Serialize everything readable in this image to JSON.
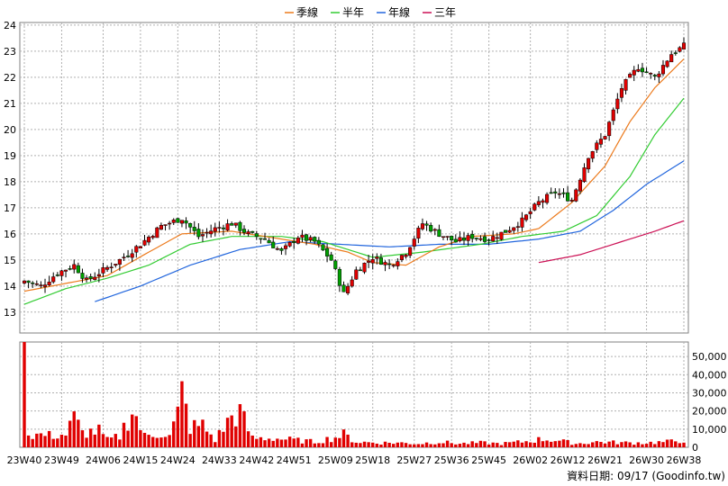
{
  "chart_data": {
    "type": "candlestick",
    "legend": [
      {
        "label": "季線",
        "color": "#ec7a1c"
      },
      {
        "label": "半年",
        "color": "#33cc33"
      },
      {
        "label": "年線",
        "color": "#2266dd"
      },
      {
        "label": "三年",
        "color": "#cc1155"
      }
    ],
    "price_axis": {
      "ticks": [
        13,
        14,
        15,
        16,
        17,
        18,
        19,
        20,
        21,
        22,
        23,
        24
      ],
      "ylim": [
        12.2,
        24.1
      ]
    },
    "volume_axis": {
      "ticks": [
        0,
        10000,
        20000,
        30000,
        40000,
        50000
      ],
      "tick_labels": [
        "0",
        "10,000",
        "20,000",
        "30,000",
        "40,000",
        "50,000"
      ],
      "ylim": [
        0,
        58000
      ]
    },
    "x_labels": [
      "23W40",
      "23W49",
      "24W06",
      "24W15",
      "24W24",
      "24W33",
      "24W42",
      "24W51",
      "25W09",
      "25W18",
      "25W27",
      "25W36",
      "25W45",
      "26W02",
      "26W12",
      "26W21",
      "26W30",
      "26W38"
    ],
    "close_anchors": [
      [
        0,
        14.2
      ],
      [
        4,
        14.0
      ],
      [
        8,
        14.5
      ],
      [
        12,
        14.8
      ],
      [
        15,
        14.2
      ],
      [
        19,
        14.6
      ],
      [
        23,
        15.0
      ],
      [
        28,
        15.6
      ],
      [
        33,
        16.3
      ],
      [
        38,
        16.6
      ],
      [
        42,
        15.9
      ],
      [
        46,
        16.2
      ],
      [
        50,
        16.4
      ],
      [
        54,
        16.0
      ],
      [
        58,
        15.8
      ],
      [
        62,
        15.3
      ],
      [
        66,
        15.9
      ],
      [
        70,
        15.7
      ],
      [
        74,
        15.0
      ],
      [
        77,
        13.7
      ],
      [
        80,
        14.6
      ],
      [
        84,
        15.1
      ],
      [
        88,
        14.8
      ],
      [
        92,
        15.3
      ],
      [
        96,
        16.4
      ],
      [
        100,
        16.0
      ],
      [
        104,
        15.7
      ],
      [
        108,
        15.9
      ],
      [
        112,
        15.8
      ],
      [
        116,
        16.1
      ],
      [
        120,
        16.5
      ],
      [
        124,
        17.2
      ],
      [
        128,
        17.6
      ],
      [
        132,
        17.3
      ],
      [
        136,
        19.0
      ],
      [
        140,
        19.8
      ],
      [
        144,
        21.6
      ],
      [
        148,
        22.4
      ],
      [
        152,
        22.0
      ],
      [
        156,
        22.9
      ],
      [
        159,
        23.2
      ]
    ],
    "volume_anchors": [
      [
        0,
        58000
      ],
      [
        1,
        7000
      ],
      [
        3,
        7000
      ],
      [
        6,
        6500
      ],
      [
        10,
        7000
      ],
      [
        12,
        16000
      ],
      [
        14,
        8000
      ],
      [
        18,
        9000
      ],
      [
        20,
        4000
      ],
      [
        23,
        6000
      ],
      [
        26,
        21000
      ],
      [
        29,
        6000
      ],
      [
        33,
        8000
      ],
      [
        35,
        6000
      ],
      [
        37,
        18000
      ],
      [
        38,
        30000
      ],
      [
        40,
        11000
      ],
      [
        43,
        12000
      ],
      [
        46,
        4000
      ],
      [
        50,
        17000
      ],
      [
        52,
        19000
      ],
      [
        55,
        5000
      ],
      [
        60,
        5000
      ],
      [
        65,
        4000
      ],
      [
        70,
        3000
      ],
      [
        75,
        5500
      ],
      [
        77,
        7000
      ],
      [
        80,
        3000
      ],
      [
        85,
        2500
      ],
      [
        90,
        2500
      ],
      [
        95,
        2000
      ],
      [
        100,
        3000
      ],
      [
        105,
        2000
      ],
      [
        110,
        2500
      ],
      [
        115,
        2000
      ],
      [
        120,
        3000
      ],
      [
        125,
        4500
      ],
      [
        128,
        4000
      ],
      [
        133,
        2000
      ],
      [
        138,
        3000
      ],
      [
        145,
        2500
      ],
      [
        150,
        2500
      ],
      [
        155,
        3000
      ],
      [
        159,
        4000
      ]
    ],
    "ma_quarter": [
      [
        0,
        13.8
      ],
      [
        10,
        14.1
      ],
      [
        20,
        14.4
      ],
      [
        30,
        15.3
      ],
      [
        38,
        16.0
      ],
      [
        50,
        16.1
      ],
      [
        62,
        15.8
      ],
      [
        70,
        15.6
      ],
      [
        78,
        15.3
      ],
      [
        84,
        14.9
      ],
      [
        92,
        14.8
      ],
      [
        100,
        15.5
      ],
      [
        108,
        15.9
      ],
      [
        118,
        16.0
      ],
      [
        124,
        16.2
      ],
      [
        132,
        17.2
      ],
      [
        140,
        18.6
      ],
      [
        146,
        20.3
      ],
      [
        152,
        21.6
      ],
      [
        159,
        22.7
      ]
    ],
    "ma_half": [
      [
        0,
        13.3
      ],
      [
        10,
        13.9
      ],
      [
        20,
        14.3
      ],
      [
        30,
        14.8
      ],
      [
        40,
        15.6
      ],
      [
        50,
        15.9
      ],
      [
        62,
        15.9
      ],
      [
        72,
        15.7
      ],
      [
        84,
        15.1
      ],
      [
        96,
        15.3
      ],
      [
        110,
        15.6
      ],
      [
        120,
        15.9
      ],
      [
        130,
        16.1
      ],
      [
        138,
        16.7
      ],
      [
        146,
        18.2
      ],
      [
        152,
        19.8
      ],
      [
        159,
        21.2
      ]
    ],
    "ma_year": [
      [
        17,
        13.4
      ],
      [
        28,
        14.0
      ],
      [
        40,
        14.8
      ],
      [
        52,
        15.4
      ],
      [
        64,
        15.7
      ],
      [
        76,
        15.6
      ],
      [
        88,
        15.5
      ],
      [
        100,
        15.6
      ],
      [
        112,
        15.6
      ],
      [
        124,
        15.8
      ],
      [
        134,
        16.1
      ],
      [
        142,
        16.9
      ],
      [
        150,
        17.9
      ],
      [
        159,
        18.8
      ]
    ],
    "ma_3y": [
      [
        124,
        14.9
      ],
      [
        134,
        15.2
      ],
      [
        144,
        15.7
      ],
      [
        152,
        16.1
      ],
      [
        159,
        16.5
      ]
    ],
    "footer": "資料日期: 09/17  (Goodinfo.tw)"
  }
}
